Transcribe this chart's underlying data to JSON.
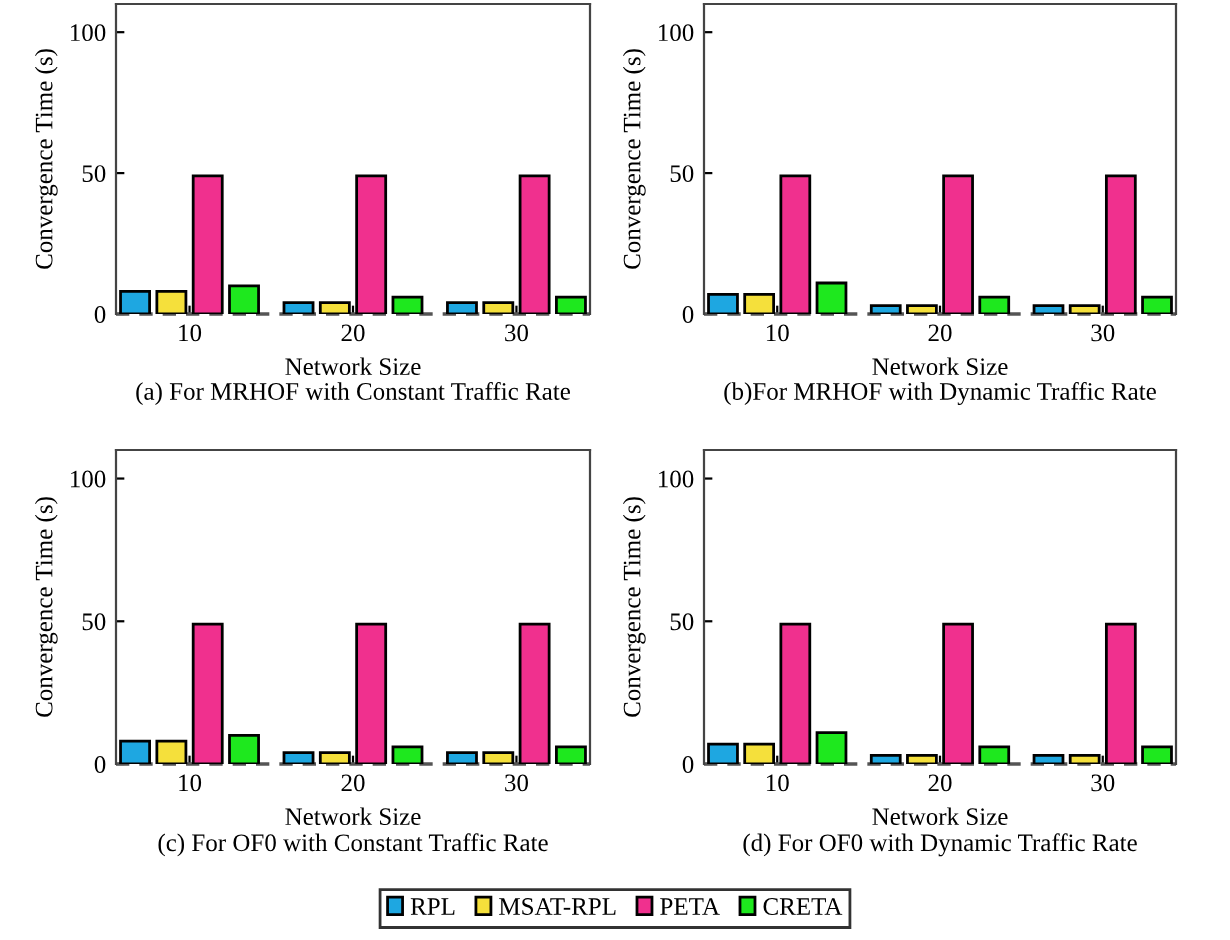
{
  "chart_data": [
    {
      "type": "bar",
      "title": "(a) For MRHOF with Constant Traffic Rate",
      "xlabel": "Network Size",
      "ylabel": "Convergence Time (s)",
      "categories": [
        "10",
        "20",
        "30"
      ],
      "ylim": [
        0,
        110
      ],
      "yticks": [
        0,
        50,
        100
      ],
      "grid": false,
      "legend": "bottom",
      "ref_lines": [
        {
          "axis": "y",
          "value": 0,
          "line_style": "dashed",
          "color": "#555555"
        }
      ],
      "series": [
        {
          "name": "RPL",
          "color": "#1ea7e1",
          "values": [
            8,
            4,
            4
          ]
        },
        {
          "name": "MSAT-RPL",
          "color": "#f5e03b",
          "values": [
            8,
            4,
            4
          ]
        },
        {
          "name": "PETA",
          "color": "#f0308e",
          "values": [
            49,
            49,
            49
          ]
        },
        {
          "name": "CRETA",
          "color": "#1ee81e",
          "values": [
            10,
            6,
            6
          ]
        }
      ]
    },
    {
      "type": "bar",
      "title": "(b)For MRHOF with Dynamic Traffic Rate",
      "xlabel": "Network Size",
      "ylabel": "Convergence Time (s)",
      "categories": [
        "10",
        "20",
        "30"
      ],
      "ylim": [
        0,
        110
      ],
      "yticks": [
        0,
        50,
        100
      ],
      "grid": false,
      "ref_lines": [
        {
          "axis": "y",
          "value": 0,
          "line_style": "dashed",
          "color": "#555555"
        }
      ],
      "series": [
        {
          "color": "#1ea7e1",
          "values": [
            7,
            3,
            3
          ]
        },
        {
          "color": "#f5e03b",
          "values": [
            7,
            3,
            3
          ]
        },
        {
          "color": "#f0308e",
          "values": [
            49,
            49,
            49
          ]
        },
        {
          "color": "#1ee81e",
          "values": [
            11,
            6,
            6
          ]
        }
      ]
    },
    {
      "type": "bar",
      "title": "(c) For OF0 with Constant Traffic Rate",
      "xlabel": "Network Size",
      "ylabel": "Convergence Time (s)",
      "categories": [
        "10",
        "20",
        "30"
      ],
      "ylim": [
        0,
        110
      ],
      "yticks": [
        0,
        50,
        100
      ],
      "grid": false,
      "ref_lines": [
        {
          "axis": "y",
          "value": 0,
          "line_style": "dashed",
          "color": "#555555"
        }
      ],
      "series": [
        {
          "color": "#1ea7e1",
          "values": [
            8,
            4,
            4
          ]
        },
        {
          "color": "#f5e03b",
          "values": [
            8,
            4,
            4
          ]
        },
        {
          "color": "#f0308e",
          "values": [
            49,
            49,
            49
          ]
        },
        {
          "color": "#1ee81e",
          "values": [
            10,
            6,
            6
          ]
        }
      ]
    },
    {
      "type": "bar",
      "title": "(d) For OF0 with Dynamic Traffic Rate",
      "xlabel": "Network Size",
      "ylabel": "Convergence Time (s)",
      "categories": [
        "10",
        "20",
        "30"
      ],
      "ylim": [
        0,
        110
      ],
      "yticks": [
        0,
        50,
        100
      ],
      "grid": false,
      "ref_lines": [
        {
          "axis": "y",
          "value": 0,
          "line_style": "dashed",
          "color": "#555555"
        }
      ],
      "series": [
        {
          "color": "#1ea7e1",
          "values": [
            7,
            3,
            3
          ]
        },
        {
          "color": "#f5e03b",
          "values": [
            7,
            3,
            3
          ]
        },
        {
          "color": "#f0308e",
          "values": [
            49,
            49,
            49
          ]
        },
        {
          "color": "#1ee81e",
          "values": [
            11,
            6,
            6
          ]
        }
      ]
    }
  ]
}
